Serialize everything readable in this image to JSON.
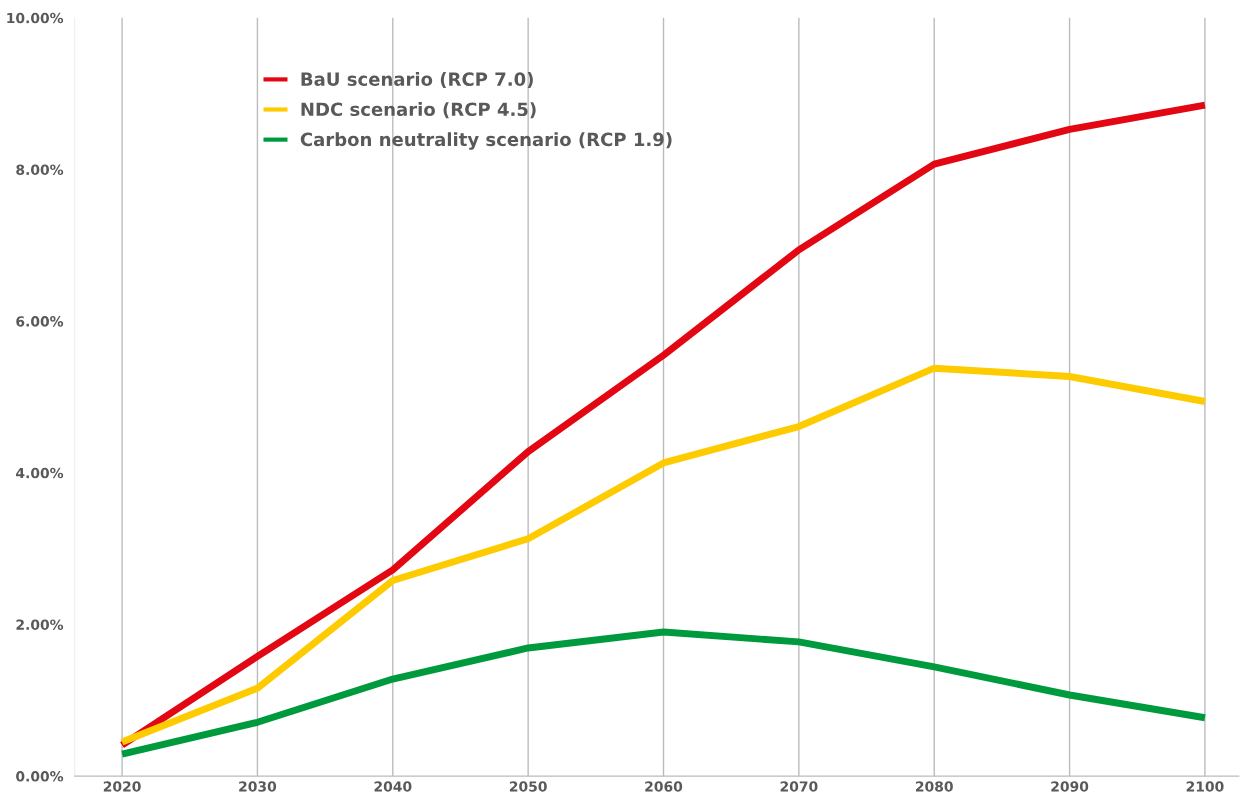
{
  "chart_data": {
    "type": "line",
    "categories": [
      "2020",
      "2030",
      "2040",
      "2050",
      "2060",
      "2070",
      "2080",
      "2090",
      "2100"
    ],
    "series": [
      {
        "name": "BaU scenario (RCP 7.0)",
        "color": "#e30613",
        "values": [
          0.41,
          1.58,
          2.72,
          4.28,
          5.55,
          6.94,
          8.07,
          8.53,
          8.85
        ]
      },
      {
        "name": "NDC scenario (RCP 4.5)",
        "color": "#fecb00",
        "values": [
          0.45,
          1.16,
          2.58,
          3.13,
          4.13,
          4.61,
          5.38,
          5.27,
          4.94
        ]
      },
      {
        "name": "Carbon neutrality scenario (RCP 1.9)",
        "color": "#009a3e",
        "values": [
          0.29,
          0.71,
          1.28,
          1.69,
          1.9,
          1.77,
          1.44,
          1.07,
          0.77
        ]
      }
    ],
    "ylim": [
      0,
      10
    ],
    "yticks": [
      {
        "value": 0,
        "label": "0.00%"
      },
      {
        "value": 2,
        "label": "2.00%"
      },
      {
        "value": 4,
        "label": "4.00%"
      },
      {
        "value": 6,
        "label": "6.00%"
      },
      {
        "value": 8,
        "label": "8.00%"
      },
      {
        "value": 10,
        "label": "10.00%"
      }
    ],
    "grid": "x",
    "legend": "top left",
    "marker": "none",
    "line_style": "solid"
  }
}
